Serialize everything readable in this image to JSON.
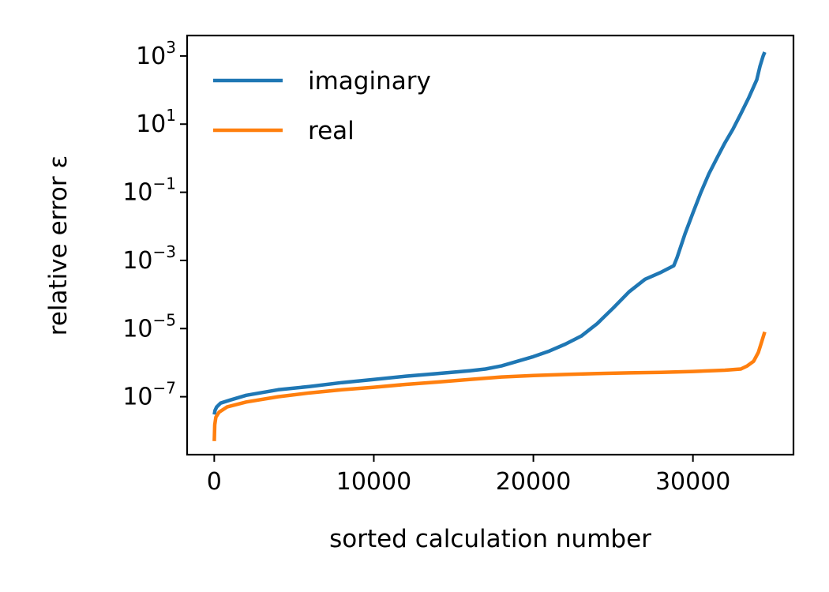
{
  "chart_data": {
    "type": "line",
    "xlabel": "sorted calculation number",
    "ylabel": "relative error ε",
    "yscale": "log",
    "xlim": [
      -1700,
      36300
    ],
    "ylim_log10": [
      -8.7,
      3.6
    ],
    "grid": false,
    "legend_position": "top-left",
    "x_ticks": [
      {
        "value": 0,
        "label": "0"
      },
      {
        "value": 10000,
        "label": "10000"
      },
      {
        "value": 20000,
        "label": "20000"
      },
      {
        "value": 30000,
        "label": "30000"
      }
    ],
    "y_ticks": [
      {
        "log10": 3,
        "base": "10",
        "exp": "3"
      },
      {
        "log10": 1,
        "base": "10",
        "exp": "1"
      },
      {
        "log10": -1,
        "base": "10",
        "exp": "−1"
      },
      {
        "log10": -3,
        "base": "10",
        "exp": "−3"
      },
      {
        "log10": -5,
        "base": "10",
        "exp": "−5"
      },
      {
        "log10": -7,
        "base": "10",
        "exp": "−7"
      }
    ],
    "series": [
      {
        "name": "imaginary",
        "color": "#1f77b4",
        "x": [
          0,
          50,
          150,
          400,
          1000,
          2000,
          4000,
          6000,
          8000,
          10000,
          12000,
          14000,
          16000,
          17000,
          18000,
          19000,
          20000,
          21000,
          22000,
          23000,
          24000,
          25000,
          26000,
          27000,
          28000,
          28800,
          29000,
          29500,
          30000,
          30500,
          31000,
          31500,
          32000,
          32500,
          33000,
          33500,
          34000,
          34200,
          34400,
          34500
        ],
        "y": [
          3e-08,
          4e-08,
          5e-08,
          6.5e-08,
          8e-08,
          1.1e-07,
          1.6e-07,
          2e-07,
          2.6e-07,
          3.2e-07,
          4e-07,
          4.8e-07,
          5.8e-07,
          6.5e-07,
          8e-07,
          1.1e-06,
          1.5e-06,
          2.2e-06,
          3.5e-06,
          6e-06,
          1.4e-05,
          4e-05,
          0.00012,
          0.00028,
          0.00045,
          0.0007,
          0.0012,
          0.006,
          0.025,
          0.1,
          0.35,
          1,
          2.8,
          7,
          20,
          60,
          200,
          500,
          1000,
          1300
        ]
      },
      {
        "name": "real",
        "color": "#ff7f0e",
        "x": [
          0,
          30,
          100,
          300,
          800,
          2000,
          4000,
          6000,
          8000,
          10000,
          12000,
          14000,
          16000,
          18000,
          20000,
          22000,
          24000,
          26000,
          28000,
          30000,
          32000,
          33000,
          33400,
          33800,
          34100,
          34300,
          34500
        ],
        "y": [
          5e-09,
          1.5e-08,
          2.5e-08,
          3.5e-08,
          5e-08,
          7e-08,
          1e-07,
          1.3e-07,
          1.6e-07,
          1.9e-07,
          2.3e-07,
          2.7e-07,
          3.2e-07,
          3.8e-07,
          4.2e-07,
          4.5e-07,
          4.8e-07,
          5e-07,
          5.2e-07,
          5.5e-07,
          6e-07,
          6.5e-07,
          8e-07,
          1.1e-06,
          2e-06,
          4e-06,
          8e-06
        ]
      }
    ]
  }
}
